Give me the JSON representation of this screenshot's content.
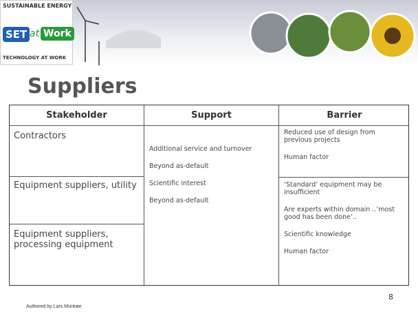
{
  "header": {
    "logo": {
      "top": "SUSTAINABLE ENERGY",
      "set": "SET",
      "at": "at",
      "work": "Work",
      "bottom": "TECHNOLOGY AT WORK"
    }
  },
  "title": "Suppliers",
  "table": {
    "headers": [
      "Stakeholder",
      "Support",
      "Barrier"
    ],
    "stakeholders": [
      "Contractors",
      "Equipment suppliers, utility",
      "Equipment suppliers, processing equipment"
    ],
    "support": [
      "Additional service and turnover",
      "Beyond as-default",
      "Scientific interest",
      "Beyond as-default"
    ],
    "barriers": [
      [
        "Reduced use of design from previous projects",
        "Human factor"
      ],
      [
        "‘Standard’ equipment may be insufficient",
        "Are experts within domain ..’most good has been done’..",
        "Scientific knowledge",
        "Human factor"
      ]
    ]
  },
  "footer": {
    "author": "Authored by Lars Munkøe",
    "page": "8"
  }
}
